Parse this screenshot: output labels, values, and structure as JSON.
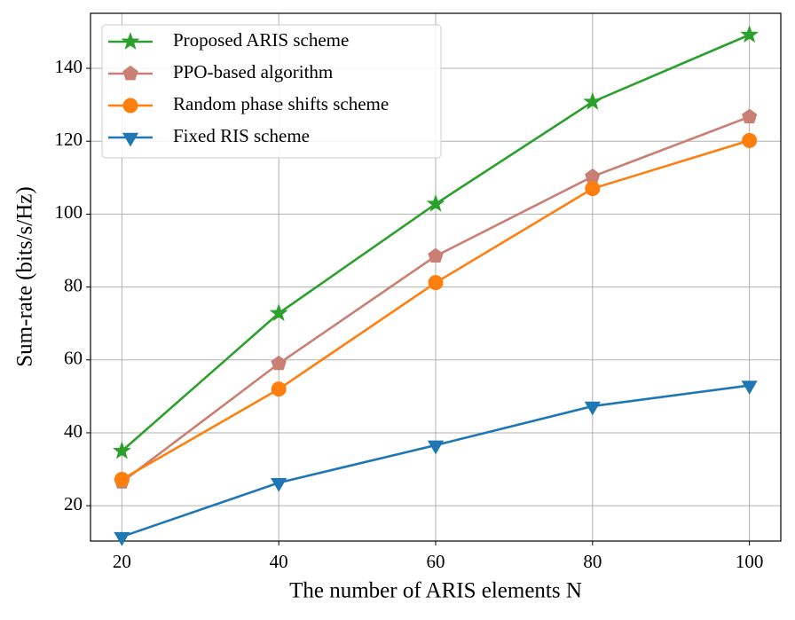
{
  "chart_data": {
    "type": "line",
    "xlabel": "The number of ARIS elements N",
    "ylabel": "Sum-rate (bits/s/Hz)",
    "x": [
      20,
      40,
      60,
      80,
      100
    ],
    "series": [
      {
        "name": "Proposed ARIS scheme",
        "color": "#2ca02c",
        "marker": "star",
        "values": [
          35,
          72.8,
          102.8,
          130.8,
          149.2
        ]
      },
      {
        "name": "PPO-based algorithm",
        "color": "#c97f74",
        "marker": "pentagon",
        "values": [
          26.5,
          59,
          88.5,
          110.3,
          126.7
        ]
      },
      {
        "name": "Random phase shifts scheme",
        "color": "#ff7f0e",
        "marker": "circle",
        "values": [
          27.2,
          52,
          81.2,
          107,
          120.2
        ]
      },
      {
        "name": "Fixed RIS scheme",
        "color": "#1f77b4",
        "marker": "triangle-down",
        "values": [
          11.5,
          26.3,
          36.6,
          47.3,
          53
        ]
      }
    ],
    "xlim": [
      16,
      104
    ],
    "ylim": [
      10.3,
      155.1
    ],
    "xticks": [
      20,
      40,
      60,
      80,
      100
    ],
    "yticks": [
      20,
      40,
      60,
      80,
      100,
      120,
      140
    ],
    "grid": true,
    "legend": "upper left"
  }
}
